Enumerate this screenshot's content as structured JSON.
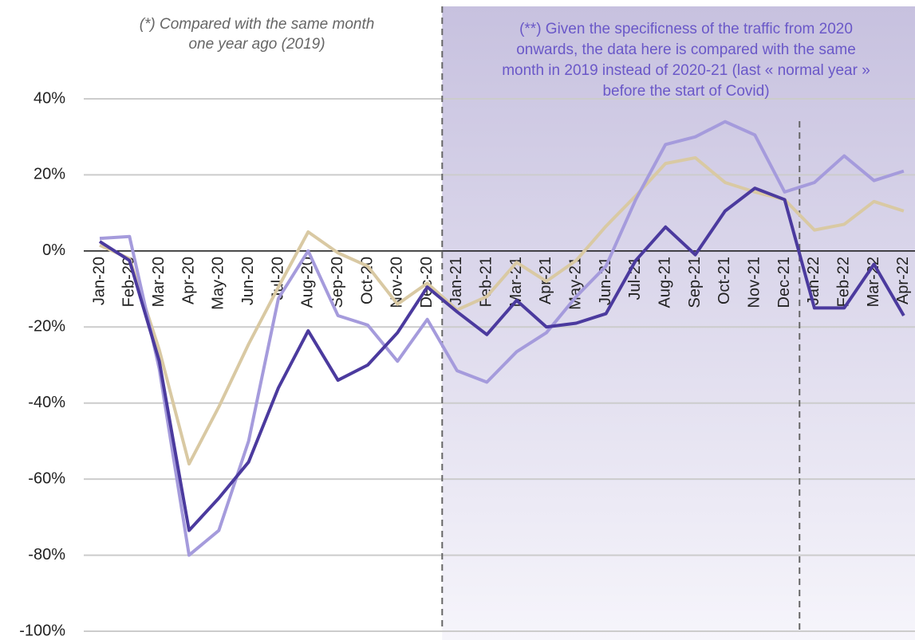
{
  "chart_data": {
    "type": "line",
    "annotations": [
      [
        "(*) Compared with the same month",
        "one year ago (2019)"
      ],
      [
        "(**) Given the specificness of the traffic from 2020",
        "onwards, the data here is compared with the same",
        "month in 2019 instead of 2020-21 (last « normal year »",
        "before the start of Covid)"
      ]
    ],
    "categories": [
      "Jan-20",
      "Feb-20",
      "Mar-20",
      "Apr-20",
      "May-20",
      "Jun-20",
      "Jul-20",
      "Aug-20",
      "Sep-20",
      "Oct-20",
      "Nov-20",
      "Dec-20",
      "Jan-21",
      "Feb-21",
      "Mar-21",
      "Apr-21",
      "May-21",
      "Jun-21",
      "Jul-21",
      "Aug-21",
      "Sep-21",
      "Oct-21",
      "Nov-21",
      "Dec-21",
      "Jan-22",
      "Feb-22",
      "Mar-22",
      "Apr-22"
    ],
    "series": [
      {
        "color": "#d9c9a3",
        "values": [
          1.5,
          -2,
          -26,
          -56,
          -41,
          -24.5,
          -9.5,
          5,
          -0.5,
          -4,
          -14,
          -8.5,
          -15.5,
          -12,
          -3,
          -8,
          -2.5,
          6.5,
          14.5,
          23,
          24.5,
          18,
          15.5,
          13.5,
          5.5,
          7,
          13,
          10.5
        ]
      },
      {
        "color": "#a59bdc",
        "values": [
          3.3,
          3.8,
          -31,
          -80,
          -73.5,
          -50,
          -12.5,
          0,
          -17,
          -19.5,
          -29,
          -18,
          -31.5,
          -34.5,
          -26.5,
          -21.5,
          -12,
          -4,
          13.5,
          28,
          30,
          34,
          30.5,
          15.5,
          18,
          25,
          18.5,
          21
        ]
      },
      {
        "color": "#4b3a9e",
        "values": [
          2.5,
          -2.5,
          -29,
          -73.5,
          -65,
          -55.5,
          -36,
          -21,
          -34,
          -30,
          -21.5,
          -9.5,
          -16,
          -22,
          -13,
          -20,
          -19,
          -16.5,
          -2.5,
          6.3,
          -1,
          10.5,
          16.5,
          13.5,
          -15,
          -15,
          -3.5,
          -17
        ]
      }
    ],
    "ylim": [
      -100,
      40
    ],
    "yticks": [
      {
        "value": 40,
        "label": "40%"
      },
      {
        "value": 20,
        "label": "20%"
      },
      {
        "value": 0,
        "label": "0%"
      },
      {
        "value": -20,
        "label": "-20%"
      },
      {
        "value": -40,
        "label": "-40%"
      },
      {
        "value": -60,
        "label": "-60%"
      },
      {
        "value": -80,
        "label": "-80%"
      },
      {
        "value": -100,
        "label": "-100%"
      }
    ],
    "grid": true
  }
}
